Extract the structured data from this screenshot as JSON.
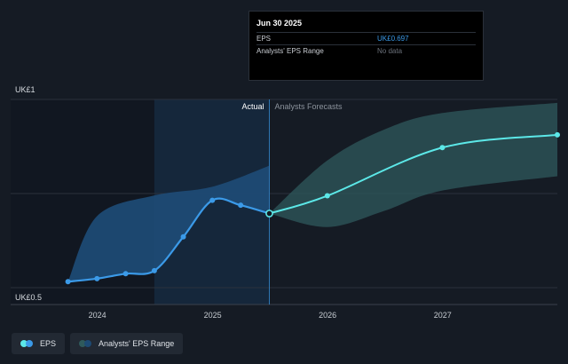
{
  "tooltip": {
    "date": "Jun 30 2025",
    "rows": [
      {
        "label": "EPS",
        "value": "UK£0.697"
      },
      {
        "label": "Analysts' EPS Range",
        "value": "No data"
      }
    ]
  },
  "labels": {
    "actual": "Actual",
    "forecasts": "Analysts Forecasts"
  },
  "legend": {
    "eps": "EPS",
    "range": "Analysts' EPS Range"
  },
  "colors": {
    "background": "#151b24",
    "eps_line": "#3b9ae8",
    "forecast_line": "#5ce8e8",
    "actual_range_fill": "#1d4a74",
    "forecast_range_fill": "#2f5a5c",
    "highlight": "#1a3552"
  },
  "chart_data": {
    "type": "line",
    "xlabel": "",
    "ylabel": "",
    "y_tick_labels": [
      "UK£1",
      "UK£0.5"
    ],
    "x_tick_labels": [
      "2024",
      "2025",
      "2026",
      "2027"
    ],
    "xlim": [
      "2023-04-01",
      "2027-12-31"
    ],
    "ylim": [
      0.5,
      1.0
    ],
    "grid": true,
    "divider_date": "2025-06-30",
    "series": [
      {
        "name": "EPS",
        "kind": "actual",
        "points": [
          {
            "x": "2023-09-30",
            "y": 0.516
          },
          {
            "x": "2023-12-31",
            "y": 0.524
          },
          {
            "x": "2024-03-31",
            "y": 0.537
          },
          {
            "x": "2024-06-30",
            "y": 0.545
          },
          {
            "x": "2024-09-30",
            "y": 0.635
          },
          {
            "x": "2024-12-31",
            "y": 0.732
          },
          {
            "x": "2025-03-31",
            "y": 0.719
          },
          {
            "x": "2025-06-30",
            "y": 0.697
          }
        ]
      },
      {
        "name": "EPS",
        "kind": "forecast",
        "points": [
          {
            "x": "2025-06-30",
            "y": 0.697
          },
          {
            "x": "2025-12-31",
            "y": 0.744
          },
          {
            "x": "2026-12-31",
            "y": 0.872
          },
          {
            "x": "2027-12-31",
            "y": 0.906
          }
        ]
      },
      {
        "name": "Analysts' EPS Range",
        "kind": "actual_range",
        "upper": [
          {
            "x": "2023-09-30",
            "y": 0.516
          },
          {
            "x": "2023-12-31",
            "y": 0.69
          },
          {
            "x": "2024-06-30",
            "y": 0.745
          },
          {
            "x": "2024-12-31",
            "y": 0.768
          },
          {
            "x": "2025-06-30",
            "y": 0.824
          }
        ],
        "lower": [
          {
            "x": "2023-09-30",
            "y": 0.516
          },
          {
            "x": "2023-12-31",
            "y": 0.524
          },
          {
            "x": "2024-03-31",
            "y": 0.537
          },
          {
            "x": "2024-06-30",
            "y": 0.545
          },
          {
            "x": "2024-09-30",
            "y": 0.635
          },
          {
            "x": "2024-12-31",
            "y": 0.732
          },
          {
            "x": "2025-03-31",
            "y": 0.719
          },
          {
            "x": "2025-06-30",
            "y": 0.697
          }
        ]
      },
      {
        "name": "Analysts' EPS Range",
        "kind": "forecast_range",
        "upper": [
          {
            "x": "2025-06-30",
            "y": 0.697
          },
          {
            "x": "2025-12-31",
            "y": 0.838
          },
          {
            "x": "2026-06-30",
            "y": 0.92
          },
          {
            "x": "2026-12-31",
            "y": 0.964
          },
          {
            "x": "2027-12-31",
            "y": 0.991
          }
        ],
        "lower": [
          {
            "x": "2025-06-30",
            "y": 0.697
          },
          {
            "x": "2025-12-31",
            "y": 0.661
          },
          {
            "x": "2026-06-30",
            "y": 0.704
          },
          {
            "x": "2026-12-31",
            "y": 0.758
          },
          {
            "x": "2027-12-31",
            "y": 0.796
          }
        ]
      }
    ]
  }
}
